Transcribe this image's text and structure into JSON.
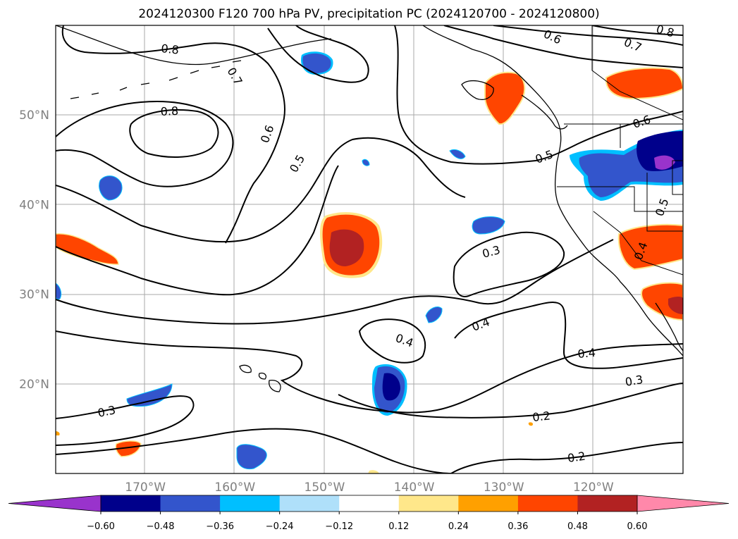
{
  "title": "2024120300 F120 700 hPa PV, precipitation PC (2024120700 - 2024120800)",
  "map": {
    "lon_range": [
      -180,
      -110
    ],
    "lat_range": [
      10,
      60
    ],
    "lon_ticks": [
      {
        "value": -170,
        "label": "170°W"
      },
      {
        "value": -160,
        "label": "160°W"
      },
      {
        "value": -150,
        "label": "150°W"
      },
      {
        "value": -140,
        "label": "140°W"
      },
      {
        "value": -130,
        "label": "130°W"
      },
      {
        "value": -120,
        "label": "120°W"
      }
    ],
    "lat_ticks": [
      {
        "value": 50,
        "label": "50°N"
      },
      {
        "value": 40,
        "label": "40°N"
      },
      {
        "value": 30,
        "label": "30°N"
      },
      {
        "value": 20,
        "label": "20°N"
      }
    ],
    "grid": true,
    "tick_color": "#808080",
    "contour_labels": [
      "0.8",
      "0.8",
      "0.7",
      "0.6",
      "0.5",
      "0.6",
      "0.7",
      "0.8",
      "0.5",
      "0.6",
      "0.5",
      "0.4",
      "0.3",
      "0.4",
      "0.4",
      "0.4",
      "0.3",
      "0.3",
      "0.2",
      "0.2"
    ]
  },
  "colorbar": {
    "extend": "both",
    "boundaries": [
      -0.6,
      -0.48,
      -0.36,
      -0.24,
      -0.12,
      0.12,
      0.24,
      0.36,
      0.48,
      0.6
    ],
    "tick_labels": [
      "−0.60",
      "−0.48",
      "−0.36",
      "−0.24",
      "−0.12",
      "0.12",
      "0.24",
      "0.36",
      "0.48",
      "0.60"
    ],
    "colors": [
      "#9933cc",
      "#00008b",
      "#3355cc",
      "#00bfff",
      "#afe0fa",
      "#ffffff",
      "#ffe78a",
      "#ffa000",
      "#ff4500",
      "#b22222",
      "#ff88aa"
    ]
  }
}
